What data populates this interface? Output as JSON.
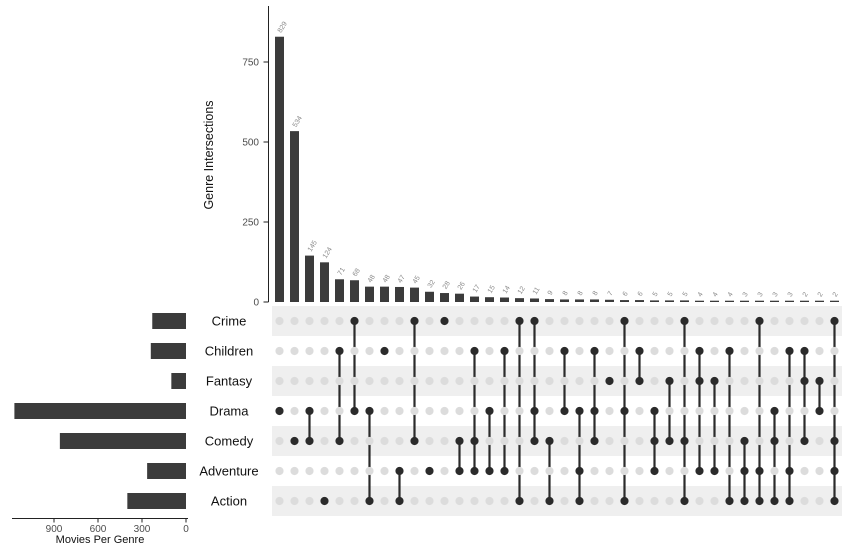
{
  "top_chart": {
    "ylabel": "Genre Intersections",
    "yticks": [
      0,
      250,
      500,
      750
    ]
  },
  "left_chart": {
    "title": "Movies Per Genre",
    "xticks": [
      900,
      600,
      300,
      0
    ]
  },
  "chart_data": {
    "type": "bar",
    "subtype": "upset",
    "ylabel": "Genre Intersections",
    "set_size_label": "Movies Per Genre",
    "intersection_ylim": [
      0,
      900
    ],
    "set_size_ticks": [
      900,
      600,
      300,
      0
    ],
    "grid": false,
    "sets": [
      {
        "name": "Crime",
        "size": 230
      },
      {
        "name": "Children",
        "size": 240
      },
      {
        "name": "Fantasy",
        "size": 100
      },
      {
        "name": "Drama",
        "size": 1170
      },
      {
        "name": "Comedy",
        "size": 860
      },
      {
        "name": "Adventure",
        "size": 265
      },
      {
        "name": "Action",
        "size": 400
      }
    ],
    "intersections": [
      {
        "sets": [
          "Drama"
        ],
        "value": 829
      },
      {
        "sets": [
          "Comedy"
        ],
        "value": 534
      },
      {
        "sets": [
          "Drama",
          "Comedy"
        ],
        "value": 145
      },
      {
        "sets": [
          "Action"
        ],
        "value": 124
      },
      {
        "sets": [
          "Children",
          "Comedy"
        ],
        "value": 71
      },
      {
        "sets": [
          "Crime",
          "Drama"
        ],
        "value": 68
      },
      {
        "sets": [
          "Drama",
          "Action"
        ],
        "value": 48
      },
      {
        "sets": [
          "Children"
        ],
        "value": 48
      },
      {
        "sets": [
          "Adventure",
          "Action"
        ],
        "value": 47
      },
      {
        "sets": [
          "Crime",
          "Comedy"
        ],
        "value": 45
      },
      {
        "sets": [
          "Adventure"
        ],
        "value": 32
      },
      {
        "sets": [
          "Crime"
        ],
        "value": 28
      },
      {
        "sets": [
          "Comedy",
          "Adventure"
        ],
        "value": 26
      },
      {
        "sets": [
          "Children",
          "Comedy",
          "Adventure"
        ],
        "value": 17
      },
      {
        "sets": [
          "Drama",
          "Adventure"
        ],
        "value": 15
      },
      {
        "sets": [
          "Children",
          "Adventure"
        ],
        "value": 14
      },
      {
        "sets": [
          "Crime",
          "Action"
        ],
        "value": 12
      },
      {
        "sets": [
          "Crime",
          "Drama",
          "Comedy"
        ],
        "value": 11
      },
      {
        "sets": [
          "Comedy",
          "Action"
        ],
        "value": 9
      },
      {
        "sets": [
          "Children",
          "Drama"
        ],
        "value": 8
      },
      {
        "sets": [
          "Drama",
          "Adventure",
          "Action"
        ],
        "value": 8
      },
      {
        "sets": [
          "Children",
          "Drama",
          "Comedy"
        ],
        "value": 8
      },
      {
        "sets": [
          "Fantasy"
        ],
        "value": 7
      },
      {
        "sets": [
          "Crime",
          "Drama",
          "Action"
        ],
        "value": 6
      },
      {
        "sets": [
          "Children",
          "Fantasy"
        ],
        "value": 6
      },
      {
        "sets": [
          "Drama",
          "Comedy",
          "Adventure"
        ],
        "value": 5
      },
      {
        "sets": [
          "Fantasy",
          "Comedy"
        ],
        "value": 5
      },
      {
        "sets": [
          "Crime",
          "Comedy",
          "Action"
        ],
        "value": 5
      },
      {
        "sets": [
          "Children",
          "Fantasy",
          "Adventure"
        ],
        "value": 4
      },
      {
        "sets": [
          "Fantasy",
          "Adventure"
        ],
        "value": 4
      },
      {
        "sets": [
          "Children",
          "Action"
        ],
        "value": 4
      },
      {
        "sets": [
          "Comedy",
          "Adventure",
          "Action"
        ],
        "value": 3
      },
      {
        "sets": [
          "Crime",
          "Adventure",
          "Action"
        ],
        "value": 3
      },
      {
        "sets": [
          "Drama",
          "Comedy",
          "Action"
        ],
        "value": 3
      },
      {
        "sets": [
          "Children",
          "Adventure",
          "Action"
        ],
        "value": 3
      },
      {
        "sets": [
          "Children",
          "Fantasy",
          "Comedy"
        ],
        "value": 2
      },
      {
        "sets": [
          "Fantasy",
          "Drama"
        ],
        "value": 2
      },
      {
        "sets": [
          "Crime",
          "Comedy",
          "Adventure",
          "Action"
        ],
        "value": 2
      }
    ]
  },
  "colors": {
    "bar": "#3b3b3b",
    "dot_active": "#2b2b2b",
    "dot_inactive": "#dcdcdc",
    "row_shade": "#efefef",
    "axis_text": "#4d4d4d",
    "value_label": "#8a8a8a",
    "axis_line": "#222222",
    "text": "#111111"
  }
}
